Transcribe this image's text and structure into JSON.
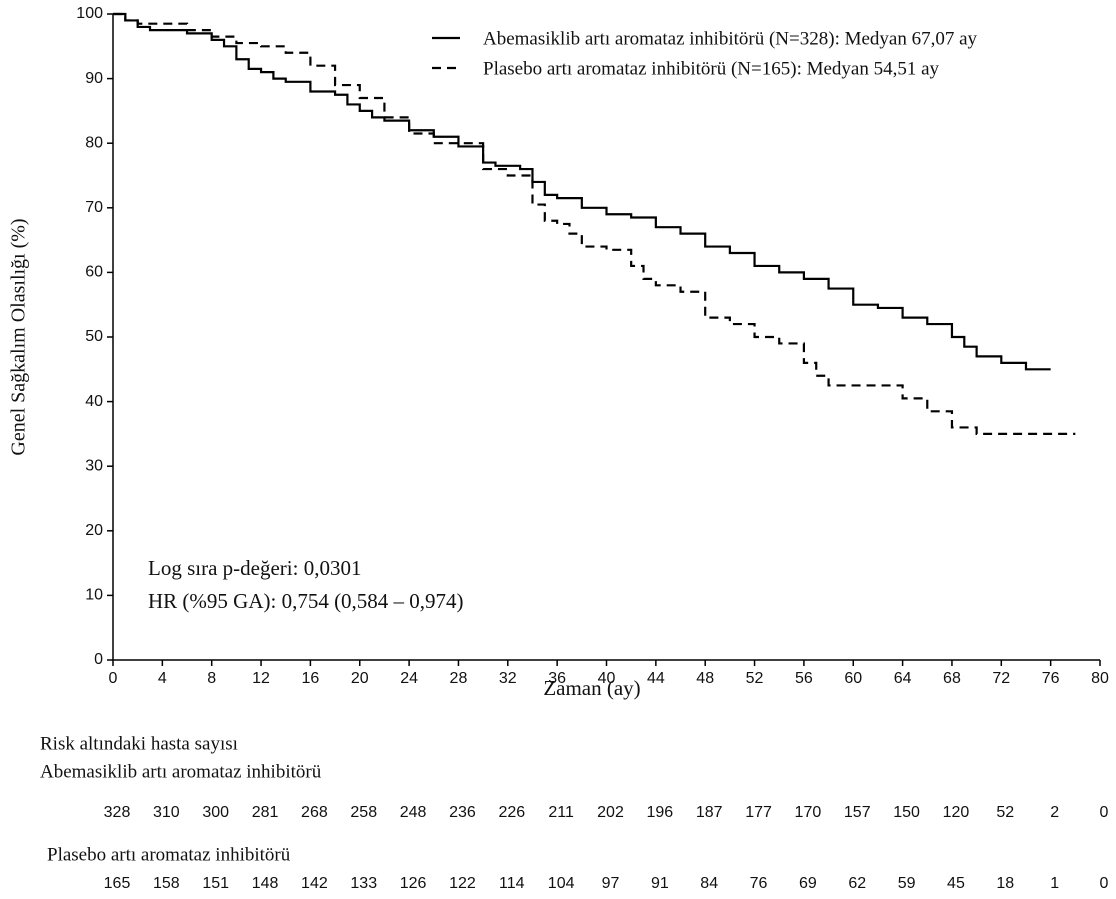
{
  "chart_data": {
    "type": "line",
    "step": true,
    "y_label": "Genel Sağkalım Olasılığı (%)",
    "x_label": "Zaman (ay)",
    "xlim": [
      0,
      80
    ],
    "xticks": [
      0,
      4,
      8,
      12,
      16,
      20,
      24,
      28,
      32,
      36,
      40,
      44,
      48,
      52,
      56,
      60,
      64,
      68,
      72,
      76,
      80
    ],
    "ylim": [
      0,
      100
    ],
    "yticks": [
      0,
      10,
      20,
      30,
      40,
      50,
      60,
      70,
      80,
      90,
      100
    ],
    "legend": "top-right",
    "series": [
      {
        "name": "Abemasiklib artı aromataz inhibitörü (N=328): Medyan 67,07 ay",
        "color": "#000000",
        "line_style": "solid",
        "x": [
          0,
          1,
          2,
          3,
          4,
          6,
          8,
          9,
          10,
          11,
          12,
          13,
          14,
          16,
          18,
          19,
          20,
          21,
          22,
          24,
          26,
          28,
          30,
          31,
          33,
          34,
          35,
          36,
          38,
          40,
          42,
          44,
          46,
          48,
          50,
          52,
          54,
          56,
          58,
          60,
          62,
          64,
          66,
          68,
          69,
          70,
          72,
          74,
          76
        ],
        "values": [
          100,
          99,
          98,
          97.5,
          97.5,
          97,
          96,
          95,
          93,
          91.5,
          91,
          90,
          89.5,
          88,
          87.5,
          86,
          85,
          84,
          83.5,
          82,
          81,
          79.5,
          77,
          76.5,
          76,
          74,
          72,
          71.5,
          70,
          69,
          68.5,
          67,
          66,
          64,
          63,
          61,
          60,
          59,
          57.5,
          55,
          54.5,
          53,
          52,
          50,
          48.5,
          47,
          46,
          45,
          45
        ]
      },
      {
        "name": "Plasebo artı aromataz inhibitörü (N=165): Medyan 54,51 ay",
        "color": "#000000",
        "line_style": "dashed",
        "x": [
          0,
          1,
          2,
          4,
          6,
          8,
          10,
          12,
          14,
          16,
          18,
          20,
          22,
          24,
          26,
          28,
          30,
          32,
          34,
          35,
          36,
          37,
          38,
          40,
          42,
          43,
          44,
          46,
          48,
          50,
          52,
          54,
          56,
          57,
          58,
          60,
          62,
          64,
          66,
          68,
          70,
          72,
          74,
          76,
          78
        ],
        "values": [
          100,
          99,
          98.5,
          98.5,
          97.5,
          96.5,
          95.5,
          95,
          94,
          92,
          89,
          87,
          84,
          81.5,
          80,
          80,
          76,
          75,
          70.5,
          68,
          67.5,
          66,
          64,
          63.5,
          61,
          59,
          58,
          57,
          53,
          52,
          50,
          49,
          46,
          44,
          42.5,
          42.5,
          42.5,
          40.5,
          38.5,
          36,
          35,
          35,
          35,
          35,
          35
        ]
      }
    ],
    "annotations": [
      "Log sıra p-değeri: 0,0301",
      "HR (%95 GA): 0,754 (0,584 – 0,974)"
    ],
    "risk_table": {
      "title": "Risk altındaki hasta sayısı",
      "rows": [
        {
          "name": "Abemasiklib artı aromataz inhibitörü",
          "values": [
            328,
            310,
            300,
            281,
            268,
            258,
            248,
            236,
            226,
            211,
            202,
            196,
            187,
            177,
            170,
            157,
            150,
            120,
            52,
            2,
            0
          ]
        },
        {
          "name": "Plasebo artı aromataz inhibitörü",
          "values": [
            165,
            158,
            151,
            148,
            142,
            133,
            126,
            122,
            114,
            104,
            97,
            91,
            84,
            76,
            69,
            62,
            59,
            45,
            18,
            1,
            0
          ]
        }
      ]
    }
  }
}
